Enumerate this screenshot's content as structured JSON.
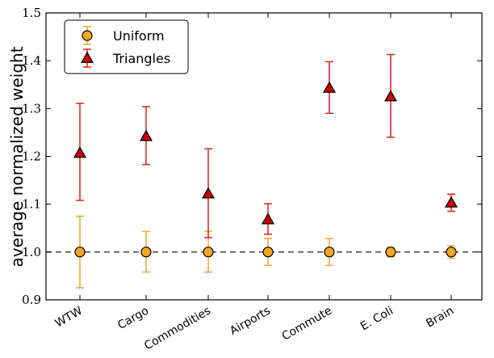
{
  "chart_data": {
    "type": "scatter",
    "title": "",
    "xlabel": "",
    "ylabel": "average normalized weight",
    "ylim": [
      0.9,
      1.5
    ],
    "yticks": [
      "0.9",
      "1.0",
      "1.1",
      "1.2",
      "1.3",
      "1.4",
      "1.5"
    ],
    "categories": [
      "WTW",
      "Cargo",
      "Commodities",
      "Airports",
      "Commute",
      "E. Coli",
      "Brain"
    ],
    "reference_line": {
      "y": 1.0,
      "style": "dashed",
      "color": "#555555"
    },
    "grid": false,
    "legend_position": "top-left",
    "series": [
      {
        "name": "Uniform",
        "marker": "circle",
        "color": "#f5a623",
        "fill": "#f5a623",
        "values": [
          1.0,
          1.0,
          1.0,
          1.0,
          1.0,
          1.0,
          1.0
        ],
        "err_low": [
          0.925,
          0.958,
          0.958,
          0.972,
          0.972,
          0.99,
          0.987
        ],
        "err_high": [
          1.075,
          1.043,
          1.043,
          1.028,
          1.028,
          1.01,
          1.013
        ]
      },
      {
        "name": "Triangles",
        "marker": "triangle",
        "color": "#e02020",
        "fill": "#cc0000",
        "values": [
          1.207,
          1.242,
          1.122,
          1.068,
          1.343,
          1.325,
          1.103
        ],
        "err_low": [
          1.108,
          1.183,
          1.03,
          1.037,
          1.29,
          1.24,
          1.085
        ],
        "err_high": [
          1.311,
          1.304,
          1.216,
          1.101,
          1.398,
          1.413,
          1.121
        ]
      }
    ]
  }
}
